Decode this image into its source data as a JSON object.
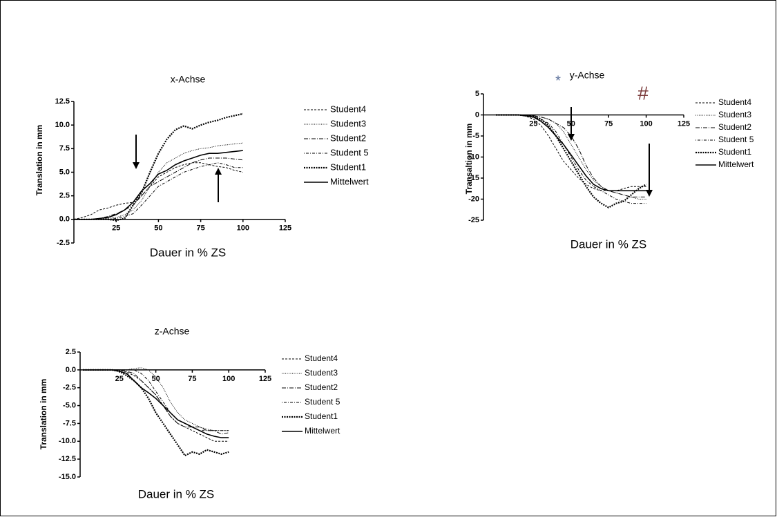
{
  "chart_data": [
    {
      "type": "line",
      "title": "x-Achse",
      "xlabel": "Dauer in % ZS",
      "ylabel": "Translation in mm",
      "xlim": [
        0,
        125
      ],
      "xticks": [
        25,
        50,
        75,
        100,
        125
      ],
      "ylim": [
        -2.5,
        12.5
      ],
      "yticks": [
        -2.5,
        {
          "value": 0,
          "label": "0.0"
        },
        2.5,
        {
          "value": 5,
          "label": "5.0"
        },
        7.5,
        {
          "value": 10,
          "label": "10.0"
        },
        12.5
      ],
      "x": [
        0,
        5,
        10,
        15,
        20,
        25,
        30,
        35,
        40,
        45,
        50,
        55,
        60,
        65,
        70,
        75,
        80,
        85,
        90,
        95,
        100
      ],
      "series": [
        {
          "name": "Student4",
          "color": "#000000",
          "values": [
            0,
            0.2,
            0.5,
            1,
            1.2,
            1.5,
            1.7,
            1.8,
            2.5,
            3.5,
            4.5,
            5,
            5.5,
            5.8,
            6,
            6,
            5.8,
            5.6,
            5.5,
            5.2,
            5.0
          ]
        },
        {
          "name": "Student3",
          "color": "#000000",
          "values": [
            0,
            0,
            0,
            0,
            0.1,
            0.2,
            0.5,
            1.0,
            2,
            3.5,
            5,
            6,
            6.5,
            7,
            7.3,
            7.5,
            7.6,
            7.8,
            7.9,
            8,
            8.1
          ]
        },
        {
          "name": "Student2",
          "color": "#000000",
          "values": [
            0,
            0,
            0,
            0.1,
            0.3,
            0.6,
            1.0,
            1.5,
            2.5,
            3.5,
            4,
            4.5,
            5,
            5.5,
            6,
            6.3,
            6.5,
            6.5,
            6.5,
            6.4,
            6.3
          ]
        },
        {
          "name": "Student 5",
          "color": "#000000",
          "values": [
            0,
            0,
            0,
            0,
            0,
            0.1,
            0.3,
            0.6,
            1.5,
            2.5,
            3.5,
            4,
            4.5,
            5,
            5.3,
            5.6,
            5.8,
            6,
            5.8,
            5.5,
            5.5
          ]
        },
        {
          "name": "Student1",
          "color": "#000000",
          "values": [
            0,
            0,
            0,
            0,
            0,
            -0.1,
            0.1,
            1.5,
            2.8,
            5,
            7,
            8.5,
            9.5,
            9.9,
            9.6,
            10,
            10.3,
            10.5,
            10.8,
            11,
            11.2
          ]
        },
        {
          "name": "Mittelwert",
          "color": "#000000",
          "values": [
            0,
            0,
            0,
            0.1,
            0.2,
            0.5,
            1.0,
            1.8,
            3,
            3.8,
            4.8,
            5.2,
            5.8,
            6.2,
            6.5,
            6.8,
            7.0,
            7.0,
            7.1,
            7.2,
            7.3
          ]
        }
      ]
    },
    {
      "type": "line",
      "title": "y-Achse",
      "xlabel": "Dauer in % ZS",
      "ylabel": "Transaltion in mm",
      "xlim": [
        0,
        125
      ],
      "xticks": [
        25,
        50,
        75,
        100,
        125
      ],
      "ylim": [
        -25,
        5
      ],
      "yticks": [
        -25,
        -20,
        -15,
        -10,
        -5,
        0,
        5
      ],
      "annotations": [
        {
          "text": "*",
          "color": "#5a6f9a"
        },
        {
          "text": "#",
          "color": "#7a3a3a"
        }
      ],
      "x": [
        0,
        5,
        10,
        15,
        20,
        25,
        30,
        35,
        40,
        45,
        50,
        55,
        60,
        65,
        70,
        75,
        80,
        85,
        90,
        95,
        100
      ],
      "series": [
        {
          "name": "Student4",
          "color": "#000000",
          "values": [
            0,
            0,
            0,
            0,
            -0.3,
            -1,
            -2.5,
            -5,
            -8,
            -11,
            -13,
            -15,
            -16.5,
            -17.5,
            -18,
            -18,
            -18,
            -17.5,
            -17,
            -17,
            -17
          ]
        },
        {
          "name": "Student3",
          "color": "#000000",
          "values": [
            0,
            0,
            0,
            0,
            0,
            -0.2,
            -0.5,
            -1,
            -2,
            -4,
            -7,
            -10,
            -13,
            -15.5,
            -17,
            -18,
            -18.5,
            -19,
            -19.5,
            -20,
            -20
          ]
        },
        {
          "name": "Student2",
          "color": "#000000",
          "values": [
            0,
            0,
            0,
            0,
            0,
            -0.2,
            -0.5,
            -1,
            -2,
            -3,
            -5,
            -8,
            -12,
            -15,
            -17,
            -18,
            -18.5,
            -19,
            -19.5,
            -19.5,
            -19.5
          ]
        },
        {
          "name": "Student 5",
          "color": "#000000",
          "values": [
            0,
            0,
            0,
            0,
            -0.1,
            -0.3,
            -1,
            -2,
            -4,
            -7,
            -10,
            -13,
            -15.5,
            -17,
            -18,
            -19,
            -20,
            -20.5,
            -21,
            -21,
            -21
          ]
        },
        {
          "name": "Student1",
          "color": "#000000",
          "values": [
            0,
            0,
            0,
            0,
            -0.2,
            -0.5,
            -1,
            -2.5,
            -5,
            -8,
            -11,
            -14,
            -17,
            -19.5,
            -21,
            -22,
            -21,
            -20.5,
            -19,
            -17.5,
            -16.5
          ]
        },
        {
          "name": "Mittelwert",
          "color": "#000000",
          "values": [
            0,
            0,
            0,
            0,
            -0.2,
            -0.5,
            -1.5,
            -3,
            -5,
            -7,
            -9.5,
            -12,
            -14.5,
            -16.5,
            -17.5,
            -18,
            -18,
            -18,
            -18,
            -18,
            -18
          ]
        }
      ]
    },
    {
      "type": "line",
      "title": "z-Achse",
      "xlabel": "Dauer in % ZS",
      "ylabel": "Translation in mm",
      "xlim": [
        0,
        125
      ],
      "xticks": [
        25,
        50,
        75,
        100,
        125
      ],
      "ylim": [
        -15,
        2.5
      ],
      "yticks": [
        {
          "value": -15,
          "label": "-15.0"
        },
        -12.5,
        {
          "value": -10,
          "label": "-10.0"
        },
        -7.5,
        {
          "value": -5,
          "label": "-5.0"
        },
        -2.5,
        {
          "value": 0,
          "label": "0.0"
        },
        2.5
      ],
      "x": [
        0,
        5,
        10,
        15,
        20,
        25,
        30,
        35,
        40,
        45,
        50,
        55,
        60,
        65,
        70,
        75,
        80,
        85,
        90,
        95,
        100
      ],
      "series": [
        {
          "name": "Student4",
          "color": "#000000",
          "values": [
            0,
            0,
            0,
            0,
            0,
            0,
            -0.3,
            -0.8,
            -1.5,
            -2.5,
            -3.5,
            -5,
            -6.5,
            -7.5,
            -8,
            -8.5,
            -9,
            -9.5,
            -10,
            -10,
            -10
          ]
        },
        {
          "name": "Student3",
          "color": "#000000",
          "values": [
            0,
            0,
            0,
            0,
            0,
            0,
            0,
            0.2,
            0.3,
            0,
            -1,
            -2.5,
            -4.5,
            -6,
            -7,
            -7.5,
            -8,
            -8.3,
            -8.5,
            -8.5,
            -8.5
          ]
        },
        {
          "name": "Student2",
          "color": "#000000",
          "values": [
            0,
            0,
            0,
            0,
            0,
            0,
            -0.2,
            -0.5,
            -1.5,
            -2.5,
            -3.5,
            -5,
            -6.5,
            -7.5,
            -8,
            -8,
            -8,
            -8.5,
            -8.5,
            -9,
            -8.8
          ]
        },
        {
          "name": "Student 5",
          "color": "#000000",
          "values": [
            0,
            0,
            0,
            0,
            0,
            0,
            0,
            0,
            -0.5,
            -1.5,
            -3,
            -4.5,
            -6,
            -7,
            -7.5,
            -8,
            -8.5,
            -8.5,
            -8.5,
            -8.5,
            -8.5
          ]
        },
        {
          "name": "Student1",
          "color": "#000000",
          "values": [
            0,
            0,
            0,
            0,
            0,
            -0.2,
            -0.8,
            -1.5,
            -2.5,
            -4,
            -6,
            -7.5,
            -9,
            -10.5,
            -12,
            -11.5,
            -11.8,
            -11.2,
            -11.5,
            -11.8,
            -11.5
          ]
        },
        {
          "name": "Mittelwert",
          "color": "#000000",
          "values": [
            0,
            0,
            0,
            0,
            0,
            -0.2,
            -0.5,
            -1.5,
            -2.5,
            -3.2,
            -4,
            -5,
            -6,
            -7,
            -7.5,
            -8,
            -8.5,
            -9,
            -9.3,
            -9.5,
            -9.5
          ]
        }
      ]
    }
  ]
}
